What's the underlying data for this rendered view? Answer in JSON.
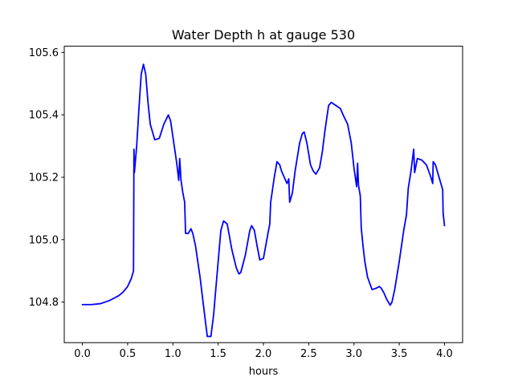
{
  "chart_data": {
    "type": "line",
    "title": "Water Depth h at gauge 530",
    "xlabel": "hours",
    "ylabel": "",
    "xlim": [
      -0.2,
      4.2
    ],
    "ylim": [
      104.67,
      105.62
    ],
    "xticks": [
      0.0,
      0.5,
      1.0,
      1.5,
      2.0,
      2.5,
      3.0,
      3.5,
      4.0
    ],
    "xtick_labels": [
      "0.0",
      "0.5",
      "1.0",
      "1.5",
      "2.0",
      "2.5",
      "3.0",
      "3.5",
      "4.0"
    ],
    "yticks": [
      104.8,
      105.0,
      105.2,
      105.4,
      105.6
    ],
    "ytick_labels": [
      "104.8",
      "105.0",
      "105.2",
      "105.4",
      "105.6"
    ],
    "grid": false,
    "series": [
      {
        "name": "",
        "color": "#0000ff",
        "points": [
          [
            0.0,
            104.792
          ],
          [
            0.1,
            104.792
          ],
          [
            0.2,
            104.795
          ],
          [
            0.3,
            104.805
          ],
          [
            0.4,
            104.82
          ],
          [
            0.45,
            104.832
          ],
          [
            0.5,
            104.85
          ],
          [
            0.54,
            104.875
          ],
          [
            0.565,
            104.9
          ],
          [
            0.57,
            105.29
          ],
          [
            0.575,
            105.215
          ],
          [
            0.6,
            105.3
          ],
          [
            0.625,
            105.42
          ],
          [
            0.65,
            105.53
          ],
          [
            0.675,
            105.562
          ],
          [
            0.7,
            105.53
          ],
          [
            0.725,
            105.44
          ],
          [
            0.75,
            105.37
          ],
          [
            0.8,
            105.32
          ],
          [
            0.85,
            105.325
          ],
          [
            0.9,
            105.37
          ],
          [
            0.95,
            105.4
          ],
          [
            0.975,
            105.38
          ],
          [
            1.0,
            105.33
          ],
          [
            1.04,
            105.25
          ],
          [
            1.065,
            105.19
          ],
          [
            1.075,
            105.26
          ],
          [
            1.09,
            105.19
          ],
          [
            1.11,
            105.15
          ],
          [
            1.13,
            105.12
          ],
          [
            1.14,
            105.02
          ],
          [
            1.17,
            105.02
          ],
          [
            1.2,
            105.035
          ],
          [
            1.22,
            105.02
          ],
          [
            1.25,
            104.98
          ],
          [
            1.3,
            104.88
          ],
          [
            1.35,
            104.76
          ],
          [
            1.38,
            104.69
          ],
          [
            1.42,
            104.69
          ],
          [
            1.45,
            104.76
          ],
          [
            1.5,
            104.93
          ],
          [
            1.53,
            105.03
          ],
          [
            1.56,
            105.06
          ],
          [
            1.6,
            105.05
          ],
          [
            1.65,
            104.97
          ],
          [
            1.7,
            104.91
          ],
          [
            1.73,
            104.89
          ],
          [
            1.75,
            104.895
          ],
          [
            1.8,
            104.95
          ],
          [
            1.85,
            105.03
          ],
          [
            1.87,
            105.045
          ],
          [
            1.9,
            105.03
          ],
          [
            1.93,
            104.98
          ],
          [
            1.96,
            104.935
          ],
          [
            2.0,
            104.94
          ],
          [
            2.05,
            105.02
          ],
          [
            2.07,
            105.05
          ],
          [
            2.08,
            105.12
          ],
          [
            2.12,
            105.2
          ],
          [
            2.15,
            105.25
          ],
          [
            2.18,
            105.24
          ],
          [
            2.2,
            105.22
          ],
          [
            2.23,
            105.2
          ],
          [
            2.26,
            105.18
          ],
          [
            2.28,
            105.195
          ],
          [
            2.29,
            105.12
          ],
          [
            2.32,
            105.15
          ],
          [
            2.35,
            105.22
          ],
          [
            2.4,
            105.31
          ],
          [
            2.43,
            105.34
          ],
          [
            2.45,
            105.345
          ],
          [
            2.48,
            105.31
          ],
          [
            2.52,
            105.24
          ],
          [
            2.55,
            105.22
          ],
          [
            2.58,
            105.21
          ],
          [
            2.62,
            105.23
          ],
          [
            2.65,
            105.28
          ],
          [
            2.68,
            105.35
          ],
          [
            2.72,
            105.43
          ],
          [
            2.75,
            105.44
          ],
          [
            2.8,
            105.43
          ],
          [
            2.85,
            105.42
          ],
          [
            2.88,
            105.4
          ],
          [
            2.93,
            105.37
          ],
          [
            2.97,
            105.31
          ],
          [
            3.0,
            105.23
          ],
          [
            3.02,
            105.19
          ],
          [
            3.03,
            105.17
          ],
          [
            3.04,
            105.245
          ],
          [
            3.05,
            105.175
          ],
          [
            3.07,
            105.14
          ],
          [
            3.08,
            105.04
          ],
          [
            3.1,
            104.98
          ],
          [
            3.12,
            104.93
          ],
          [
            3.15,
            104.88
          ],
          [
            3.2,
            104.84
          ],
          [
            3.25,
            104.845
          ],
          [
            3.28,
            104.85
          ],
          [
            3.3,
            104.845
          ],
          [
            3.33,
            104.83
          ],
          [
            3.36,
            104.81
          ],
          [
            3.4,
            104.79
          ],
          [
            3.42,
            104.8
          ],
          [
            3.45,
            104.84
          ],
          [
            3.5,
            104.93
          ],
          [
            3.55,
            105.03
          ],
          [
            3.58,
            105.08
          ],
          [
            3.6,
            105.165
          ],
          [
            3.63,
            105.22
          ],
          [
            3.66,
            105.29
          ],
          [
            3.67,
            105.215
          ],
          [
            3.7,
            105.26
          ],
          [
            3.75,
            105.255
          ],
          [
            3.8,
            105.24
          ],
          [
            3.85,
            105.2
          ],
          [
            3.87,
            105.18
          ],
          [
            3.875,
            105.25
          ],
          [
            3.9,
            105.24
          ],
          [
            3.93,
            105.21
          ],
          [
            3.96,
            105.18
          ],
          [
            3.98,
            105.16
          ],
          [
            3.985,
            105.085
          ],
          [
            4.0,
            105.045
          ]
        ]
      }
    ]
  }
}
